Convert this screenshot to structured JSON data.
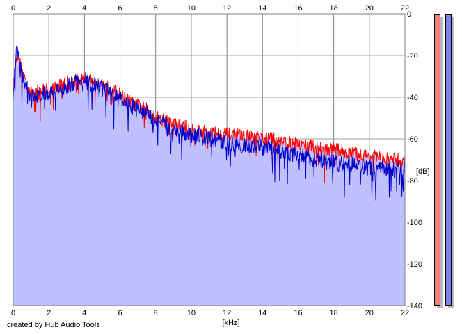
{
  "chart_data": {
    "type": "area",
    "xlabel": "[kHz]",
    "ylabel": "[dB]",
    "xlim": [
      0,
      22
    ],
    "ylim": [
      -140,
      0
    ],
    "x_ticks": [
      "0",
      "2",
      "4",
      "6",
      "8",
      "10",
      "12",
      "14",
      "16",
      "18",
      "20",
      "22"
    ],
    "y_ticks": [
      "0",
      "-20",
      "-40",
      "-60",
      "-80",
      "-100",
      "-120",
      "-140"
    ],
    "grid": true,
    "series": [
      {
        "color": "#ff0000",
        "x": [
          0.0,
          0.2,
          0.5,
          1.0,
          1.5,
          2.0,
          2.5,
          3.0,
          3.5,
          4.0,
          4.5,
          5.0,
          5.5,
          6.0,
          6.5,
          7.0,
          7.5,
          8.0,
          8.5,
          9.0,
          9.5,
          10.0,
          10.5,
          11.0,
          11.5,
          12.0,
          12.5,
          13.0,
          13.5,
          14.0,
          14.5,
          15.0,
          15.5,
          16.0,
          16.5,
          17.0,
          17.5,
          18.0,
          18.5,
          19.0,
          19.5,
          20.0,
          20.5,
          21.0,
          21.5,
          22.0
        ],
        "y": [
          -36,
          -18,
          -28,
          -38,
          -37,
          -36,
          -35,
          -33,
          -32,
          -31,
          -32,
          -34,
          -36,
          -39,
          -42,
          -44,
          -46,
          -49,
          -51,
          -53,
          -54,
          -55,
          -56,
          -57,
          -57,
          -58,
          -58,
          -59,
          -59,
          -60,
          -60,
          -61,
          -62,
          -63,
          -63,
          -64,
          -65,
          -65,
          -66,
          -67,
          -68,
          -68,
          -69,
          -70,
          -70,
          -71
        ]
      },
      {
        "color": "#0000cc",
        "x": [
          0.0,
          0.2,
          0.5,
          1.0,
          1.5,
          2.0,
          2.5,
          3.0,
          3.5,
          4.0,
          4.5,
          5.0,
          5.5,
          6.0,
          6.5,
          7.0,
          7.5,
          8.0,
          8.5,
          9.0,
          9.5,
          10.0,
          10.5,
          11.0,
          11.5,
          12.0,
          12.5,
          13.0,
          13.5,
          14.0,
          14.5,
          15.0,
          15.5,
          16.0,
          16.5,
          17.0,
          17.5,
          18.0,
          18.5,
          19.0,
          19.5,
          20.0,
          20.5,
          21.0,
          21.5,
          22.0
        ],
        "y": [
          -38,
          -16,
          -30,
          -40,
          -39,
          -38,
          -37,
          -35,
          -33,
          -32,
          -34,
          -36,
          -38,
          -41,
          -44,
          -46,
          -48,
          -51,
          -53,
          -55,
          -57,
          -58,
          -59,
          -60,
          -61,
          -62,
          -62,
          -63,
          -63,
          -64,
          -65,
          -66,
          -67,
          -68,
          -69,
          -70,
          -71,
          -71,
          -72,
          -72,
          -73,
          -74,
          -74,
          -75,
          -75,
          -75
        ]
      }
    ],
    "fill_color": "#c0c0ff",
    "line_color": "#ff0000",
    "line_color_2": "#0000cc"
  },
  "credit": "created by Hub Audio Tools",
  "meters": {
    "left_color": "#f08080",
    "right_color": "#8080f0"
  }
}
